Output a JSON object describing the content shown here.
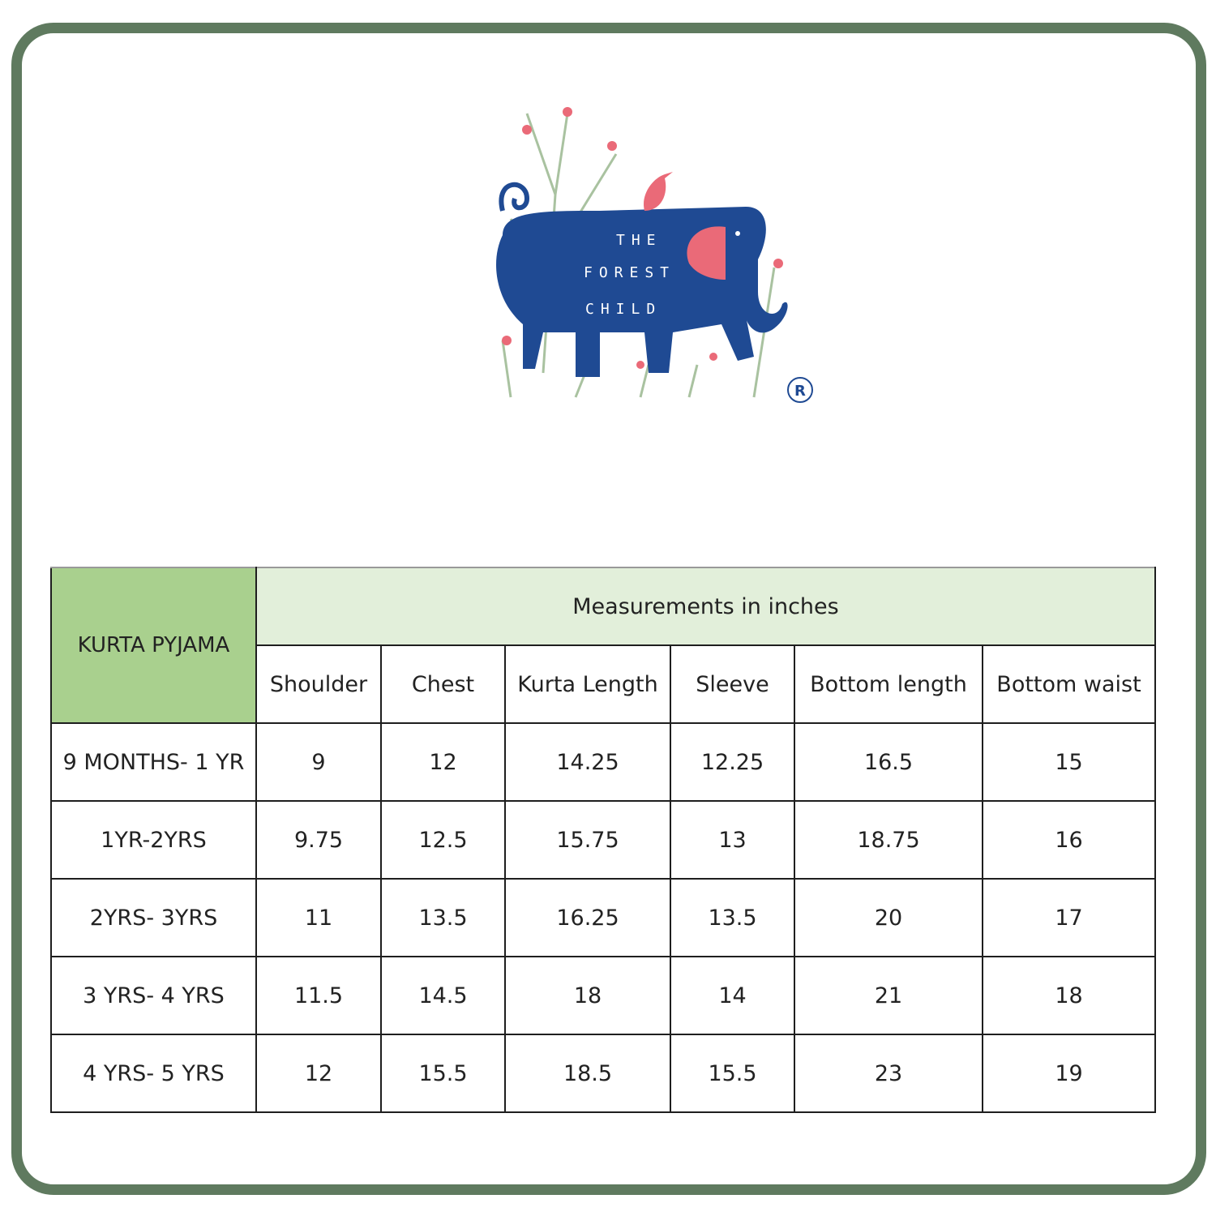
{
  "brand": {
    "logo_lines": [
      "THE",
      "FOREST",
      "CHILD"
    ],
    "registered_mark": "R"
  },
  "colors": {
    "frame": "#5f7a5f",
    "corner_header": "#a9d08e",
    "group_header": "#e2efda",
    "elephant": "#1f4a93",
    "accent": "#ea6a78"
  },
  "table": {
    "corner_label": "KURTA PYJAMA",
    "group_label": "Measurements in inches",
    "columns": [
      "Shoulder",
      "Chest",
      "Kurta Length",
      "Sleeve",
      "Bottom length",
      "Bottom waist"
    ],
    "rows": [
      {
        "size": "9 MONTHS- 1 YR",
        "values": [
          "9",
          "12",
          "14.25",
          "12.25",
          "16.5",
          "15"
        ]
      },
      {
        "size": "1YR-2YRS",
        "values": [
          "9.75",
          "12.5",
          "15.75",
          "13",
          "18.75",
          "16"
        ]
      },
      {
        "size": "2YRS- 3YRS",
        "values": [
          "11",
          "13.5",
          "16.25",
          "13.5",
          "20",
          "17"
        ]
      },
      {
        "size": "3 YRS- 4 YRS",
        "values": [
          "11.5",
          "14.5",
          "18",
          "14",
          "21",
          "18"
        ]
      },
      {
        "size": "4 YRS- 5 YRS",
        "values": [
          "12",
          "15.5",
          "18.5",
          "15.5",
          "23",
          "19"
        ]
      }
    ]
  }
}
